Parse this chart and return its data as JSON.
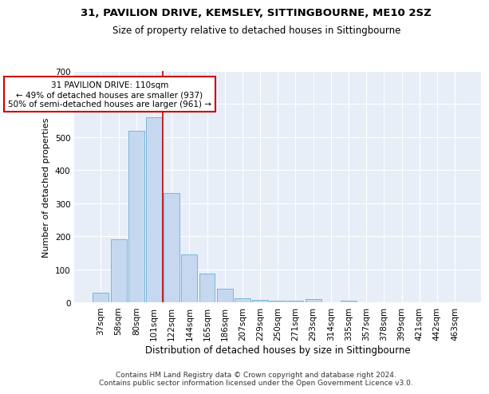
{
  "title1": "31, PAVILION DRIVE, KEMSLEY, SITTINGBOURNE, ME10 2SZ",
  "title2": "Size of property relative to detached houses in Sittingbourne",
  "xlabel": "Distribution of detached houses by size in Sittingbourne",
  "ylabel": "Number of detached properties",
  "categories": [
    "37sqm",
    "58sqm",
    "80sqm",
    "101sqm",
    "122sqm",
    "144sqm",
    "165sqm",
    "186sqm",
    "207sqm",
    "229sqm",
    "250sqm",
    "271sqm",
    "293sqm",
    "314sqm",
    "335sqm",
    "357sqm",
    "378sqm",
    "399sqm",
    "421sqm",
    "442sqm",
    "463sqm"
  ],
  "values": [
    30,
    190,
    520,
    560,
    330,
    145,
    88,
    40,
    12,
    8,
    5,
    5,
    10,
    0,
    6,
    0,
    0,
    0,
    0,
    0,
    0
  ],
  "bar_color": "#c5d8f0",
  "bar_edgecolor": "#6baed6",
  "bar_linewidth": 0.6,
  "vline_x": 4.0,
  "vline_color": "#cc0000",
  "vline_linewidth": 1.2,
  "annotation_line1": "31 PAVILION DRIVE: 110sqm",
  "annotation_line2": "← 49% of detached houses are smaller (937)",
  "annotation_line3": "50% of semi-detached houses are larger (961) →",
  "annotation_box_color": "white",
  "annotation_box_edgecolor": "#cc0000",
  "ylim": [
    0,
    700
  ],
  "yticks": [
    0,
    100,
    200,
    300,
    400,
    500,
    600,
    700
  ],
  "background_color": "#e8eef8",
  "grid_color": "white",
  "footer": "Contains HM Land Registry data © Crown copyright and database right 2024.\nContains public sector information licensed under the Open Government Licence v3.0.",
  "title1_fontsize": 9.5,
  "title2_fontsize": 8.5,
  "xlabel_fontsize": 8.5,
  "ylabel_fontsize": 8,
  "tick_fontsize": 7.5,
  "annotation_fontsize": 7.5,
  "footer_fontsize": 6.5
}
